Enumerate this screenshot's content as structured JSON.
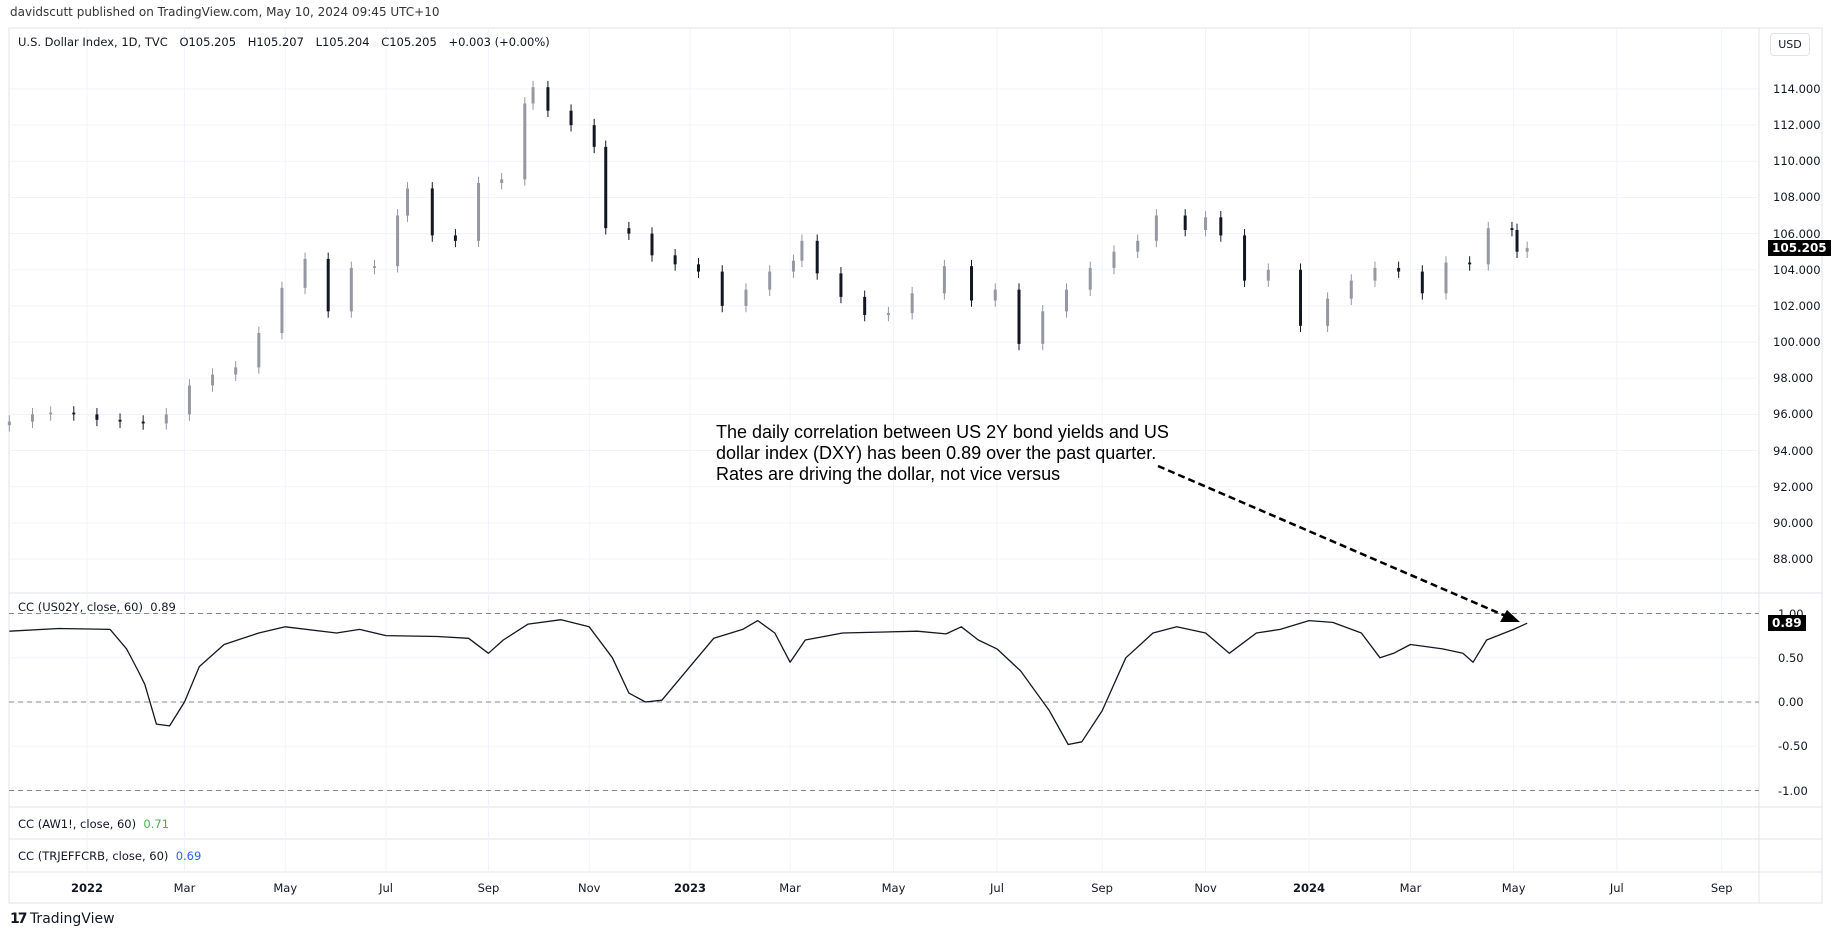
{
  "header": {
    "published": "davidscutt published on TradingView.com, May 10, 2024 09:45 UTC+10"
  },
  "legend": {
    "symbol": "U.S. Dollar Index, 1D, TVC",
    "open": "O105.205",
    "high": "H105.207",
    "low": "L105.204",
    "close": "C105.205",
    "change": "+0.003 (+0.00%)"
  },
  "currency_button": "USD",
  "annotation": "The daily correlation between US 2Y bond yields and US dollar index (DXY) has been 0.89 over the past quarter. Rates are driving the dollar, not vice versus",
  "indicators": [
    {
      "label": "CC (US02Y, close, 60)",
      "value": "0.89",
      "color": "#131722"
    },
    {
      "label": "CC (AW1!, close, 60)",
      "value": "0.71",
      "color": "#4caf50"
    },
    {
      "label": "CC (TRJEFFCRB, close, 60)",
      "value": "0.69",
      "color": "#2962ff"
    }
  ],
  "brand": "TradingView",
  "chart_data": [
    {
      "type": "candlestick",
      "title": "U.S. Dollar Index, 1D, TVC",
      "ylim": [
        86,
        115
      ],
      "yticks": [
        "114.000",
        "112.000",
        "110.000",
        "108.000",
        "106.000",
        "104.000",
        "102.000",
        "100.000",
        "98.000",
        "96.000",
        "94.000",
        "92.000",
        "90.000",
        "88.000"
      ],
      "last_price": "105.205",
      "grid": true,
      "dates": [
        "2021-11-15",
        "2021-11-29",
        "2021-12-10",
        "2021-12-24",
        "2022-01-07",
        "2022-01-21",
        "2022-02-04",
        "2022-02-18",
        "2022-03-04",
        "2022-03-18",
        "2022-04-01",
        "2022-04-15",
        "2022-04-29",
        "2022-05-13",
        "2022-05-27",
        "2022-06-10",
        "2022-06-24",
        "2022-07-08",
        "2022-07-14",
        "2022-07-29",
        "2022-08-12",
        "2022-08-26",
        "2022-09-09",
        "2022-09-23",
        "2022-09-28",
        "2022-10-07",
        "2022-10-21",
        "2022-11-04",
        "2022-11-11",
        "2022-11-25",
        "2022-12-09",
        "2022-12-23",
        "2023-01-06",
        "2023-01-20",
        "2023-02-03",
        "2023-02-17",
        "2023-03-03",
        "2023-03-08",
        "2023-03-17",
        "2023-03-31",
        "2023-04-14",
        "2023-04-28",
        "2023-05-12",
        "2023-05-31",
        "2023-06-16",
        "2023-06-30",
        "2023-07-14",
        "2023-07-28",
        "2023-08-11",
        "2023-08-25",
        "2023-09-08",
        "2023-09-22",
        "2023-10-03",
        "2023-10-20",
        "2023-11-01",
        "2023-11-10",
        "2023-11-24",
        "2023-12-08",
        "2023-12-27",
        "2024-01-12",
        "2024-01-26",
        "2024-02-09",
        "2024-02-23",
        "2024-03-08",
        "2024-03-22",
        "2024-04-05",
        "2024-04-16",
        "2024-04-30",
        "2024-05-03",
        "2024-05-09"
      ],
      "close": [
        95.6,
        96.0,
        96.1,
        96.0,
        95.7,
        95.6,
        95.5,
        96.0,
        97.6,
        98.2,
        98.6,
        100.5,
        103.0,
        104.6,
        101.7,
        104.1,
        104.2,
        107.0,
        108.5,
        105.9,
        105.6,
        108.8,
        109.0,
        113.2,
        114.1,
        112.8,
        112.0,
        110.8,
        106.3,
        106.0,
        104.8,
        104.3,
        103.9,
        102.0,
        102.9,
        103.9,
        104.5,
        105.6,
        103.8,
        102.5,
        101.5,
        101.6,
        102.7,
        104.2,
        102.3,
        102.9,
        99.9,
        101.7,
        102.9,
        104.1,
        105.0,
        105.6,
        107.0,
        106.2,
        106.9,
        105.9,
        103.4,
        104.0,
        100.9,
        102.4,
        103.4,
        104.1,
        103.9,
        102.7,
        104.4,
        104.3,
        106.3,
        106.2,
        105.0,
        105.2
      ]
    },
    {
      "type": "line",
      "title": "CC (US02Y, close, 60)",
      "ylim": [
        -1.1,
        1.1
      ],
      "yticks": [
        "1.00",
        "0.50",
        "0.00",
        "-0.50",
        "-1.00"
      ],
      "reference_lines": [
        1,
        0,
        -1
      ],
      "last_value": "0.89",
      "dates": [
        "2021-11-15",
        "2021-12-15",
        "2022-01-15",
        "2022-01-25",
        "2022-02-01",
        "2022-02-05",
        "2022-02-12",
        "2022-02-20",
        "2022-03-01",
        "2022-03-10",
        "2022-03-25",
        "2022-04-15",
        "2022-05-01",
        "2022-06-01",
        "2022-06-15",
        "2022-07-01",
        "2022-08-01",
        "2022-08-20",
        "2022-09-01",
        "2022-09-10",
        "2022-09-25",
        "2022-10-15",
        "2022-11-01",
        "2022-11-15",
        "2022-11-25",
        "2022-12-05",
        "2022-12-15",
        "2023-01-01",
        "2023-01-15",
        "2023-02-01",
        "2023-02-10",
        "2023-02-20",
        "2023-03-01",
        "2023-03-10",
        "2023-04-01",
        "2023-05-15",
        "2023-06-01",
        "2023-06-10",
        "2023-06-20",
        "2023-07-01",
        "2023-07-15",
        "2023-08-01",
        "2023-08-12",
        "2023-08-20",
        "2023-09-01",
        "2023-09-15",
        "2023-10-01",
        "2023-10-15",
        "2023-11-01",
        "2023-11-15",
        "2023-12-01",
        "2023-12-15",
        "2024-01-01",
        "2024-01-15",
        "2024-02-01",
        "2024-02-12",
        "2024-02-20",
        "2024-03-01",
        "2024-03-20",
        "2024-04-01",
        "2024-04-07",
        "2024-04-15",
        "2024-05-01",
        "2024-05-09"
      ],
      "values": [
        0.8,
        0.83,
        0.82,
        0.6,
        0.35,
        0.2,
        -0.25,
        -0.27,
        0.0,
        0.4,
        0.65,
        0.78,
        0.85,
        0.78,
        0.82,
        0.75,
        0.74,
        0.72,
        0.55,
        0.7,
        0.88,
        0.93,
        0.85,
        0.5,
        0.1,
        0.0,
        0.02,
        0.4,
        0.72,
        0.82,
        0.92,
        0.78,
        0.45,
        0.7,
        0.78,
        0.8,
        0.77,
        0.85,
        0.7,
        0.6,
        0.35,
        -0.1,
        -0.48,
        -0.45,
        -0.1,
        0.5,
        0.78,
        0.85,
        0.78,
        0.55,
        0.78,
        0.82,
        0.92,
        0.9,
        0.78,
        0.5,
        0.55,
        0.65,
        0.6,
        0.55,
        0.45,
        0.7,
        0.82,
        0.89
      ]
    }
  ],
  "time_axis": {
    "ticks": [
      {
        "label": "2022",
        "date": "2022-01-01",
        "major": true
      },
      {
        "label": "Mar",
        "date": "2022-03-01"
      },
      {
        "label": "May",
        "date": "2022-05-01"
      },
      {
        "label": "Jul",
        "date": "2022-07-01"
      },
      {
        "label": "Sep",
        "date": "2022-09-01"
      },
      {
        "label": "Nov",
        "date": "2022-11-01"
      },
      {
        "label": "2023",
        "date": "2023-01-01",
        "major": true
      },
      {
        "label": "Mar",
        "date": "2023-03-01"
      },
      {
        "label": "May",
        "date": "2023-05-01"
      },
      {
        "label": "Jul",
        "date": "2023-07-01"
      },
      {
        "label": "Sep",
        "date": "2023-09-01"
      },
      {
        "label": "Nov",
        "date": "2023-11-01"
      },
      {
        "label": "2024",
        "date": "2024-01-01",
        "major": true
      },
      {
        "label": "Mar",
        "date": "2024-03-01"
      },
      {
        "label": "May",
        "date": "2024-05-01"
      },
      {
        "label": "Jul",
        "date": "2024-07-01"
      },
      {
        "label": "Sep",
        "date": "2024-09-01"
      }
    ]
  },
  "colors": {
    "up": "#9598a1",
    "down": "#131722",
    "grid": "#f0f3fa",
    "border": "#e0e3eb"
  }
}
